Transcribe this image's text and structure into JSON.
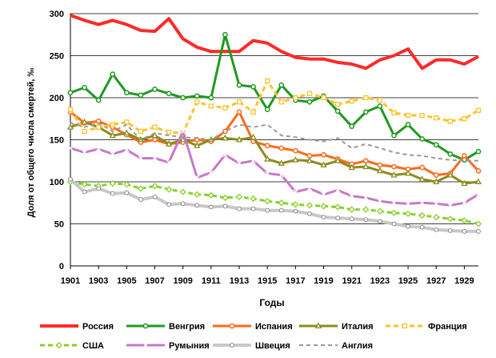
{
  "chart_data": {
    "type": "line",
    "title": "",
    "xlabel": "Годы",
    "ylabel": "Доля от общего числа смертей, ‰",
    "ylim": [
      0,
      300
    ],
    "yticks": [
      0,
      50,
      100,
      150,
      200,
      250,
      300
    ],
    "x_tick_labels": [
      "1901",
      "1903",
      "1905",
      "1907",
      "1909",
      "1911",
      "1913",
      "1915",
      "1917",
      "1919",
      "1921",
      "1923",
      "1925",
      "1927",
      "1929"
    ],
    "grid": "horizontal",
    "legend_position": "bottom",
    "series": [
      {
        "name": "Россия",
        "color": "#ff2a2a",
        "marker": "none",
        "dash": "",
        "width": 4,
        "x": [
          1901,
          1902,
          1903,
          1904,
          1905,
          1906,
          1907,
          1908,
          1909,
          1910,
          1911,
          1912,
          1913,
          1914,
          1915,
          1916,
          1917,
          1918,
          1919,
          1920,
          1921,
          1922,
          1923,
          1924,
          1925,
          1926,
          1927,
          1928,
          1929,
          1930
        ],
        "values": [
          298,
          292,
          287,
          292,
          287,
          280,
          279,
          294,
          270,
          260,
          255,
          255,
          255,
          268,
          265,
          255,
          248,
          246,
          246,
          242,
          240,
          235,
          245,
          250,
          258,
          235,
          245,
          245,
          240,
          249
        ]
      },
      {
        "name": "Венгрия",
        "color": "#1f9a1f",
        "marker": "circle",
        "dash": "",
        "width": 3,
        "x": [
          1901,
          1902,
          1903,
          1904,
          1905,
          1906,
          1907,
          1908,
          1909,
          1910,
          1911,
          1912,
          1913,
          1914,
          1915,
          1916,
          1917,
          1918,
          1919,
          1920,
          1921,
          1922,
          1923,
          1924,
          1925,
          1926,
          1927,
          1928,
          1929,
          1930
        ],
        "values": [
          206,
          212,
          197,
          228,
          206,
          203,
          210,
          205,
          200,
          202,
          200,
          275,
          215,
          213,
          186,
          215,
          197,
          195,
          202,
          184,
          166,
          183,
          190,
          155,
          168,
          151,
          144,
          133,
          126,
          136
        ]
      },
      {
        "name": "Испания",
        "color": "#ff6a1a",
        "marker": "circle",
        "dash": "",
        "width": 3,
        "x": [
          1901,
          1902,
          1903,
          1904,
          1905,
          1906,
          1907,
          1908,
          1909,
          1910,
          1911,
          1912,
          1913,
          1914,
          1915,
          1916,
          1917,
          1918,
          1919,
          1920,
          1921,
          1922,
          1923,
          1924,
          1925,
          1926,
          1927,
          1928,
          1929,
          1930
        ],
        "values": [
          183,
          170,
          172,
          165,
          156,
          147,
          150,
          145,
          147,
          150,
          148,
          160,
          183,
          148,
          143,
          140,
          137,
          131,
          132,
          127,
          121,
          125,
          120,
          118,
          115,
          117,
          108,
          110,
          131,
          113
        ]
      },
      {
        "name": "Италия",
        "color": "#8c8c1e",
        "marker": "triangle",
        "dash": "",
        "width": 3,
        "x": [
          1901,
          1902,
          1903,
          1904,
          1905,
          1906,
          1907,
          1908,
          1909,
          1910,
          1911,
          1912,
          1913,
          1914,
          1915,
          1916,
          1917,
          1918,
          1919,
          1920,
          1921,
          1922,
          1923,
          1924,
          1925,
          1926,
          1927,
          1928,
          1929,
          1930
        ],
        "values": [
          165,
          171,
          165,
          155,
          158,
          150,
          155,
          145,
          150,
          143,
          150,
          152,
          150,
          153,
          127,
          122,
          126,
          125,
          120,
          125,
          117,
          118,
          113,
          108,
          110,
          103,
          100,
          108,
          98,
          100
        ]
      },
      {
        "name": "Франция",
        "color": "#ffc22a",
        "marker": "square",
        "dash": "6,4",
        "width": 3,
        "x": [
          1901,
          1902,
          1903,
          1904,
          1905,
          1906,
          1907,
          1908,
          1909,
          1910,
          1911,
          1912,
          1913,
          1914,
          1915,
          1916,
          1917,
          1918,
          1919,
          1920,
          1921,
          1922,
          1923,
          1924,
          1925,
          1926,
          1927,
          1928,
          1929,
          1930
        ],
        "values": [
          186,
          160,
          165,
          168,
          171,
          160,
          165,
          159,
          158,
          195,
          190,
          188,
          195,
          183,
          220,
          195,
          200,
          205,
          200,
          192,
          196,
          200,
          197,
          182,
          179,
          179,
          176,
          172,
          175,
          185
        ]
      },
      {
        "name": "США",
        "color": "#88d02a",
        "marker": "diamond",
        "dash": "6,4",
        "width": 3,
        "x": [
          1901,
          1902,
          1903,
          1904,
          1905,
          1906,
          1907,
          1908,
          1909,
          1910,
          1911,
          1912,
          1913,
          1914,
          1915,
          1916,
          1917,
          1918,
          1919,
          1920,
          1921,
          1922,
          1923,
          1924,
          1925,
          1926,
          1927,
          1928,
          1929,
          1930
        ],
        "values": [
          100,
          97,
          95,
          98,
          97,
          92,
          95,
          91,
          88,
          85,
          84,
          81,
          82,
          80,
          77,
          75,
          73,
          72,
          71,
          70,
          67,
          67,
          65,
          63,
          62,
          60,
          58,
          56,
          54,
          50
        ]
      },
      {
        "name": "Румыния",
        "color": "#c878c8",
        "marker": "cross",
        "dash": "",
        "width": 3,
        "x": [
          1901,
          1902,
          1903,
          1904,
          1905,
          1906,
          1907,
          1908,
          1909,
          1910,
          1911,
          1912,
          1913,
          1914,
          1915,
          1916,
          1917,
          1918,
          1919,
          1920,
          1921,
          1922,
          1923,
          1924,
          1925,
          1926,
          1927,
          1928,
          1929,
          1930
        ],
        "values": [
          140,
          135,
          139,
          133,
          138,
          128,
          128,
          123,
          160,
          105,
          111,
          132,
          122,
          125,
          110,
          108,
          88,
          92,
          85,
          90,
          83,
          81,
          77,
          75,
          74,
          75,
          74,
          72,
          75,
          85
        ]
      },
      {
        "name": "Швеция",
        "color": "#c8c8c8",
        "marker": "circle-open",
        "dash": "",
        "width": 4,
        "x": [
          1901,
          1902,
          1903,
          1904,
          1905,
          1906,
          1907,
          1908,
          1909,
          1910,
          1911,
          1912,
          1913,
          1914,
          1915,
          1916,
          1917,
          1918,
          1919,
          1920,
          1921,
          1922,
          1923,
          1924,
          1925,
          1926,
          1927,
          1928,
          1929,
          1930
        ],
        "values": [
          103,
          88,
          92,
          86,
          87,
          79,
          82,
          73,
          74,
          72,
          70,
          71,
          68,
          68,
          66,
          66,
          65,
          62,
          58,
          57,
          56,
          55,
          53,
          50,
          47,
          46,
          43,
          42,
          41,
          41
        ]
      },
      {
        "name": "Англия",
        "color": "#9a9a9a",
        "marker": "none",
        "dash": "5,4",
        "width": 2,
        "x": [
          1901,
          1902,
          1903,
          1904,
          1905,
          1906,
          1907,
          1908,
          1909,
          1910,
          1911,
          1912,
          1913,
          1914,
          1915,
          1916,
          1917,
          1918,
          1919,
          1920,
          1921,
          1922,
          1923,
          1924,
          1925,
          1926,
          1927,
          1928,
          1929,
          1930
        ],
        "values": [
          170,
          165,
          170,
          160,
          168,
          150,
          158,
          155,
          153,
          152,
          150,
          160,
          168,
          165,
          168,
          155,
          153,
          150,
          148,
          152,
          140,
          145,
          140,
          135,
          132,
          131,
          128,
          126,
          125,
          125
        ]
      }
    ]
  }
}
